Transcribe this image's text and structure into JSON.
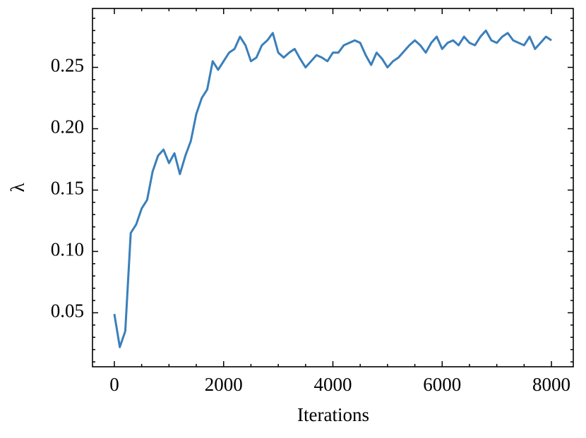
{
  "chart_data": {
    "type": "line",
    "xlabel": "Iterations",
    "ylabel": "λ",
    "x": [
      0,
      100,
      200,
      300,
      400,
      500,
      600,
      700,
      800,
      900,
      1000,
      1100,
      1200,
      1300,
      1400,
      1500,
      1600,
      1700,
      1800,
      1900,
      2000,
      2100,
      2200,
      2300,
      2400,
      2500,
      2600,
      2700,
      2800,
      2900,
      3000,
      3100,
      3200,
      3300,
      3400,
      3500,
      3600,
      3700,
      3800,
      3900,
      4000,
      4100,
      4200,
      4300,
      4400,
      4500,
      4600,
      4700,
      4800,
      4900,
      5000,
      5100,
      5200,
      5300,
      5400,
      5500,
      5600,
      5700,
      5800,
      5900,
      6000,
      6100,
      6200,
      6300,
      6400,
      6500,
      6600,
      6700,
      6800,
      6900,
      7000,
      7100,
      7200,
      7300,
      7400,
      7500,
      7600,
      7700,
      7800,
      7900,
      8000
    ],
    "values": [
      0.049,
      0.022,
      0.035,
      0.115,
      0.122,
      0.135,
      0.142,
      0.165,
      0.178,
      0.183,
      0.172,
      0.18,
      0.163,
      0.178,
      0.19,
      0.212,
      0.225,
      0.232,
      0.255,
      0.248,
      0.255,
      0.262,
      0.265,
      0.275,
      0.268,
      0.255,
      0.258,
      0.268,
      0.272,
      0.278,
      0.262,
      0.258,
      0.262,
      0.265,
      0.257,
      0.25,
      0.255,
      0.26,
      0.258,
      0.255,
      0.262,
      0.262,
      0.268,
      0.27,
      0.272,
      0.27,
      0.26,
      0.252,
      0.262,
      0.257,
      0.25,
      0.255,
      0.258,
      0.263,
      0.268,
      0.272,
      0.268,
      0.262,
      0.27,
      0.275,
      0.265,
      0.27,
      0.272,
      0.268,
      0.275,
      0.27,
      0.268,
      0.275,
      0.28,
      0.272,
      0.27,
      0.275,
      0.278,
      0.272,
      0.27,
      0.268,
      0.275,
      0.265,
      0.27,
      0.275,
      0.272
    ],
    "color": "#3a7fba",
    "xlim": [
      -400,
      8400
    ],
    "xticks": [
      0,
      2000,
      4000,
      6000,
      8000
    ],
    "x_minor_ticks": [
      500,
      1000,
      1500,
      2500,
      3000,
      3500,
      4500,
      5000,
      5500,
      6500,
      7000,
      7500
    ],
    "ylim": [
      0.006,
      0.298
    ],
    "yticks": [
      0.05,
      {
        "value": 0.1,
        "label": "0.10"
      },
      0.15,
      {
        "value": 0.2,
        "label": "0.20"
      },
      0.25
    ],
    "y_minor_ticks": [
      0.01,
      0.02,
      0.03,
      0.04,
      0.06,
      0.07,
      0.08,
      0.09,
      0.11,
      0.12,
      0.13,
      0.14,
      0.16,
      0.17,
      0.18,
      0.19,
      0.21,
      0.22,
      0.23,
      0.24,
      0.26,
      0.27,
      0.28,
      0.29
    ],
    "grid": false
  }
}
